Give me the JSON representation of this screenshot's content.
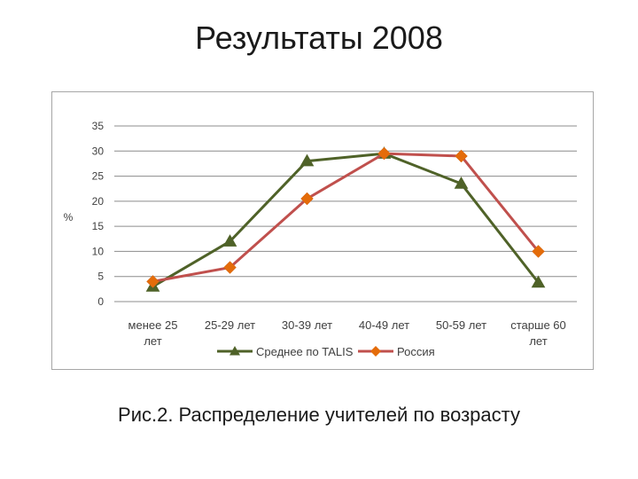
{
  "page": {
    "title": "Результаты 2008",
    "caption": "Рис.2. Распределение учителей по возрасту"
  },
  "chart_data": {
    "type": "line",
    "ylabel": "%",
    "xlabel": "",
    "ylim": [
      0,
      35
    ],
    "yticks": [
      0,
      5,
      10,
      15,
      20,
      25,
      30,
      35
    ],
    "grid": true,
    "legend_position": "bottom",
    "categories": [
      [
        "менее 25",
        "лет"
      ],
      [
        "25-29 лет"
      ],
      [
        "30-39 лет"
      ],
      [
        "40-49 лет"
      ],
      [
        "50-59 лет"
      ],
      [
        "старше 60",
        "лет"
      ]
    ],
    "series": [
      {
        "name": "Среднее по TALIS",
        "color": "#4f6228",
        "marker": "triangle",
        "values": [
          3,
          12,
          28,
          29.5,
          23.5,
          3.8
        ]
      },
      {
        "name": "Россия",
        "color": "#c0504d",
        "marker_color": "#e46c0a",
        "marker": "diamond",
        "values": [
          4,
          6.8,
          20.5,
          29.5,
          29,
          10
        ]
      }
    ]
  }
}
